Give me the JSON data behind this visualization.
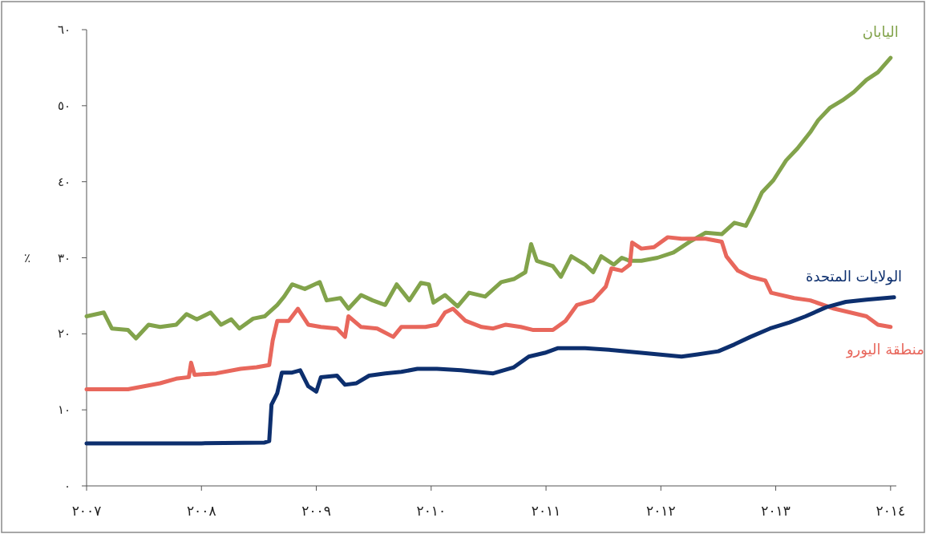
{
  "chart_data": {
    "type": "line",
    "ylabel": "٪",
    "xlim": [
      2007,
      2014.05
    ],
    "ylim": [
      0,
      60
    ],
    "xticks": [
      {
        "value": 2007,
        "label": "٢٠٠٧"
      },
      {
        "value": 2008,
        "label": "٢٠٠٨"
      },
      {
        "value": 2009,
        "label": "٢٠٠٩"
      },
      {
        "value": 2010,
        "label": "٢٠١٠"
      },
      {
        "value": 2011,
        "label": "٢٠١١"
      },
      {
        "value": 2012,
        "label": "٢٠١٢"
      },
      {
        "value": 2013,
        "label": "٢٠١٣"
      },
      {
        "value": 2014,
        "label": "٢٠١٤"
      }
    ],
    "yticks": [
      {
        "value": 0,
        "label": "٠"
      },
      {
        "value": 10,
        "label": "١٠"
      },
      {
        "value": 20,
        "label": "٢٠"
      },
      {
        "value": 30,
        "label": "٣٠"
      },
      {
        "value": 40,
        "label": "٤٠"
      },
      {
        "value": 50,
        "label": "٥٠"
      },
      {
        "value": 60,
        "label": "٦٠"
      }
    ],
    "series": [
      {
        "name": "اليابان",
        "color": "#82a34b",
        "x": [
          2007.0,
          2007.15,
          2007.22,
          2007.36,
          2007.43,
          2007.54,
          2007.64,
          2007.78,
          2007.87,
          2007.96,
          2008.08,
          2008.17,
          2008.26,
          2008.33,
          2008.45,
          2008.55,
          2008.66,
          2008.72,
          2008.79,
          2008.9,
          2009.03,
          2009.09,
          2009.21,
          2009.28,
          2009.39,
          2009.49,
          2009.6,
          2009.7,
          2009.81,
          2009.91,
          2009.98,
          2010.02,
          2010.12,
          2010.23,
          2010.33,
          2010.47,
          2010.61,
          2010.72,
          2010.82,
          2010.87,
          2010.92,
          2011.06,
          2011.13,
          2011.22,
          2011.34,
          2011.41,
          2011.48,
          2011.59,
          2011.66,
          2011.73,
          2011.83,
          2011.97,
          2012.11,
          2012.25,
          2012.39,
          2012.53,
          2012.64,
          2012.74,
          2012.81,
          2012.88,
          2012.98,
          2013.09,
          2013.19,
          2013.3,
          2013.37,
          2013.47,
          2013.58,
          2013.68,
          2013.79,
          2013.89,
          2014.0
        ],
        "values": [
          22.3,
          22.8,
          20.7,
          20.5,
          19.4,
          21.2,
          20.9,
          21.2,
          22.6,
          21.9,
          22.8,
          21.2,
          21.9,
          20.7,
          22.0,
          22.3,
          23.8,
          24.9,
          26.5,
          25.9,
          26.8,
          24.4,
          24.7,
          23.3,
          25.1,
          24.4,
          23.8,
          26.5,
          24.4,
          26.7,
          26.5,
          24.1,
          25.1,
          23.6,
          25.4,
          24.9,
          26.8,
          27.2,
          28.1,
          31.8,
          29.6,
          28.9,
          27.5,
          30.2,
          29.1,
          28.1,
          30.2,
          29.1,
          30.0,
          29.6,
          29.6,
          30.0,
          30.7,
          32.1,
          33.3,
          33.1,
          34.6,
          34.2,
          36.3,
          38.6,
          40.2,
          42.8,
          44.4,
          46.5,
          48.1,
          49.7,
          50.7,
          51.8,
          53.4,
          54.4,
          56.3
        ]
      },
      {
        "name": "منطقة اليورو",
        "color": "#e8675c",
        "x": [
          2007.0,
          2007.36,
          2007.5,
          2007.64,
          2007.78,
          2007.89,
          2007.91,
          2007.94,
          2008.13,
          2008.34,
          2008.48,
          2008.59,
          2008.62,
          2008.66,
          2008.76,
          2008.84,
          2008.93,
          2009.04,
          2009.18,
          2009.25,
          2009.28,
          2009.39,
          2009.53,
          2009.67,
          2009.74,
          2009.95,
          2010.05,
          2010.12,
          2010.19,
          2010.3,
          2010.44,
          2010.54,
          2010.65,
          2010.78,
          2010.89,
          2011.06,
          2011.17,
          2011.27,
          2011.41,
          2011.52,
          2011.57,
          2011.66,
          2011.73,
          2011.75,
          2011.83,
          2011.94,
          2012.06,
          2012.18,
          2012.39,
          2012.53,
          2012.57,
          2012.67,
          2012.78,
          2012.91,
          2012.96,
          2013.16,
          2013.3,
          2013.51,
          2013.65,
          2013.79,
          2013.89,
          2014.0
        ],
        "values": [
          12.7,
          12.7,
          13.1,
          13.5,
          14.1,
          14.3,
          16.2,
          14.6,
          14.8,
          15.4,
          15.6,
          15.9,
          19.1,
          21.7,
          21.7,
          23.3,
          21.2,
          20.9,
          20.7,
          19.6,
          22.3,
          20.9,
          20.7,
          19.6,
          20.9,
          20.9,
          21.2,
          22.8,
          23.3,
          21.7,
          20.9,
          20.7,
          21.2,
          20.9,
          20.5,
          20.5,
          21.7,
          23.8,
          24.4,
          26.2,
          28.6,
          28.3,
          29.1,
          32.0,
          31.2,
          31.4,
          32.7,
          32.5,
          32.5,
          32.1,
          30.2,
          28.3,
          27.5,
          27.0,
          25.4,
          24.7,
          24.4,
          23.3,
          22.8,
          22.3,
          21.2,
          20.9
        ]
      },
      {
        "name": "الولايات المتحدة",
        "color": "#0d2f6e",
        "x": [
          2007.0,
          2007.5,
          2008.0,
          2008.55,
          2008.59,
          2008.61,
          2008.66,
          2008.7,
          2008.79,
          2008.86,
          2008.93,
          2009.0,
          2009.04,
          2009.18,
          2009.25,
          2009.35,
          2009.46,
          2009.6,
          2009.74,
          2009.88,
          2010.05,
          2010.26,
          2010.54,
          2010.72,
          2010.85,
          2010.99,
          2011.1,
          2011.34,
          2011.55,
          2011.83,
          2012.18,
          2012.32,
          2012.5,
          2012.64,
          2012.78,
          2012.95,
          2013.12,
          2013.26,
          2013.44,
          2013.61,
          2013.79,
          2014.03
        ],
        "values": [
          5.6,
          5.6,
          5.6,
          5.7,
          5.9,
          10.7,
          12.2,
          14.9,
          14.9,
          15.2,
          13.1,
          12.4,
          14.3,
          14.5,
          13.3,
          13.5,
          14.5,
          14.8,
          15.0,
          15.4,
          15.4,
          15.2,
          14.8,
          15.6,
          17.0,
          17.5,
          18.1,
          18.1,
          17.9,
          17.5,
          17.0,
          17.3,
          17.7,
          18.6,
          19.6,
          20.7,
          21.5,
          22.3,
          23.5,
          24.2,
          24.5,
          24.8
        ]
      }
    ]
  }
}
